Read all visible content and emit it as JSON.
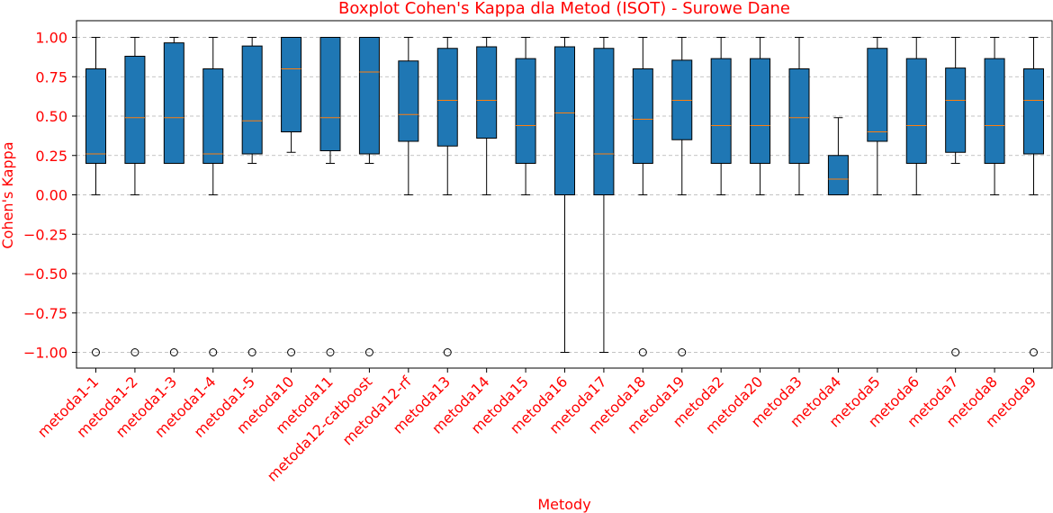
{
  "chart_data": {
    "type": "boxplot",
    "title": "Boxplot Cohen's Kappa dla Metod (ISOT) - Surowe Dane",
    "xlabel": "Metody",
    "ylabel": "Cohen's Kappa",
    "ylim": [
      -1.1,
      1.1
    ],
    "yticks": [
      "1.00",
      "0.75",
      "0.50",
      "0.25",
      "0.00",
      "−0.25",
      "−0.50",
      "−0.75",
      "−1.00"
    ],
    "grid": "y-dashed",
    "colors": {
      "text": "#ff0000",
      "box": "#1f77b4",
      "median": "#ff7f0e",
      "grid": "#b0b0b0",
      "axis": "#000000"
    },
    "categories": [
      "metoda1-1",
      "metoda1-2",
      "metoda1-3",
      "metoda1-4",
      "metoda1-5",
      "metoda10",
      "metoda11",
      "metoda12-catboost",
      "metoda12-rf",
      "metoda13",
      "metoda14",
      "metoda15",
      "metoda16",
      "metoda17",
      "metoda18",
      "metoda19",
      "metoda2",
      "metoda20",
      "metoda3",
      "metoda4",
      "metoda5",
      "metoda6",
      "metoda7",
      "metoda8",
      "metoda9"
    ],
    "boxes": [
      {
        "whislo": 0.0,
        "q1": 0.2,
        "med": 0.26,
        "q3": 0.8,
        "whishi": 1.0,
        "fliers": [
          -1.0
        ]
      },
      {
        "whislo": 0.0,
        "q1": 0.2,
        "med": 0.49,
        "q3": 0.88,
        "whishi": 1.0,
        "fliers": [
          -1.0
        ]
      },
      {
        "whislo": 0.2,
        "q1": 0.2,
        "med": 0.49,
        "q3": 0.965,
        "whishi": 1.0,
        "fliers": [
          -1.0
        ]
      },
      {
        "whislo": 0.0,
        "q1": 0.2,
        "med": 0.26,
        "q3": 0.8,
        "whishi": 1.0,
        "fliers": [
          -1.0
        ]
      },
      {
        "whislo": 0.2,
        "q1": 0.26,
        "med": 0.47,
        "q3": 0.945,
        "whishi": 1.0,
        "fliers": [
          -1.0
        ]
      },
      {
        "whislo": 0.27,
        "q1": 0.4,
        "med": 0.8,
        "q3": 1.0,
        "whishi": 1.0,
        "fliers": [
          -1.0
        ]
      },
      {
        "whislo": 0.2,
        "q1": 0.28,
        "med": 0.49,
        "q3": 1.0,
        "whishi": 1.0,
        "fliers": [
          -1.0
        ]
      },
      {
        "whislo": 0.2,
        "q1": 0.26,
        "med": 0.78,
        "q3": 1.0,
        "whishi": 1.0,
        "fliers": [
          -1.0
        ]
      },
      {
        "whislo": 0.0,
        "q1": 0.34,
        "med": 0.51,
        "q3": 0.85,
        "whishi": 1.0,
        "fliers": []
      },
      {
        "whislo": 0.0,
        "q1": 0.31,
        "med": 0.6,
        "q3": 0.93,
        "whishi": 1.0,
        "fliers": [
          -1.0
        ]
      },
      {
        "whislo": 0.0,
        "q1": 0.36,
        "med": 0.6,
        "q3": 0.94,
        "whishi": 1.0,
        "fliers": []
      },
      {
        "whislo": 0.0,
        "q1": 0.2,
        "med": 0.44,
        "q3": 0.865,
        "whishi": 1.0,
        "fliers": []
      },
      {
        "whislo": -1.0,
        "q1": 0.0,
        "med": 0.52,
        "q3": 0.94,
        "whishi": 1.0,
        "fliers": []
      },
      {
        "whislo": -1.0,
        "q1": 0.0,
        "med": 0.26,
        "q3": 0.93,
        "whishi": 1.0,
        "fliers": []
      },
      {
        "whislo": 0.0,
        "q1": 0.2,
        "med": 0.48,
        "q3": 0.8,
        "whishi": 1.0,
        "fliers": [
          -1.0
        ]
      },
      {
        "whislo": 0.0,
        "q1": 0.35,
        "med": 0.6,
        "q3": 0.855,
        "whishi": 1.0,
        "fliers": [
          -1.0
        ]
      },
      {
        "whislo": 0.0,
        "q1": 0.2,
        "med": 0.44,
        "q3": 0.865,
        "whishi": 1.0,
        "fliers": []
      },
      {
        "whislo": 0.0,
        "q1": 0.2,
        "med": 0.44,
        "q3": 0.865,
        "whishi": 1.0,
        "fliers": []
      },
      {
        "whislo": 0.0,
        "q1": 0.2,
        "med": 0.49,
        "q3": 0.8,
        "whishi": 1.0,
        "fliers": []
      },
      {
        "whislo": 0.0,
        "q1": 0.0,
        "med": 0.1,
        "q3": 0.25,
        "whishi": 0.49,
        "fliers": []
      },
      {
        "whislo": 0.0,
        "q1": 0.34,
        "med": 0.4,
        "q3": 0.93,
        "whishi": 1.0,
        "fliers": []
      },
      {
        "whislo": 0.0,
        "q1": 0.2,
        "med": 0.44,
        "q3": 0.865,
        "whishi": 1.0,
        "fliers": []
      },
      {
        "whislo": 0.2,
        "q1": 0.27,
        "med": 0.6,
        "q3": 0.805,
        "whishi": 1.0,
        "fliers": [
          -1.0
        ]
      },
      {
        "whislo": 0.0,
        "q1": 0.2,
        "med": 0.44,
        "q3": 0.865,
        "whishi": 1.0,
        "fliers": []
      },
      {
        "whislo": 0.0,
        "q1": 0.26,
        "med": 0.6,
        "q3": 0.8,
        "whishi": 1.0,
        "fliers": [
          -1.0
        ]
      }
    ]
  }
}
